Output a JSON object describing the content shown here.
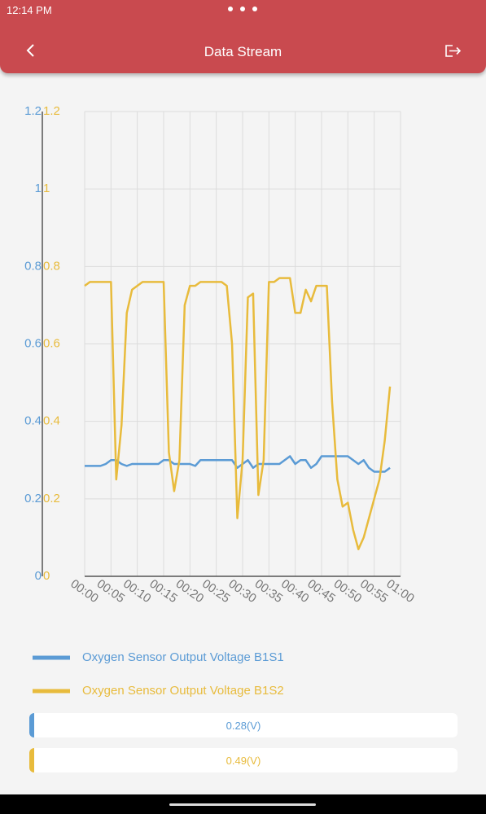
{
  "status_bar": {
    "time": "12:14 PM"
  },
  "header": {
    "title": "Data Stream"
  },
  "chart_data": {
    "type": "line",
    "x": [
      0,
      1,
      2,
      3,
      4,
      5,
      6,
      7,
      8,
      9,
      10,
      11,
      12,
      13,
      14,
      15,
      16,
      17,
      18,
      19,
      20,
      21,
      22,
      23,
      24,
      25,
      26,
      27,
      28,
      29,
      30,
      31,
      32,
      33,
      34,
      35,
      36,
      37,
      38,
      39,
      40,
      41,
      42,
      43,
      44,
      45,
      46,
      47,
      48,
      49,
      50,
      51,
      52,
      53,
      54,
      55,
      56,
      57,
      58
    ],
    "xlim": [
      0,
      60
    ],
    "xticks": [
      {
        "value": 0,
        "label": "00:00"
      },
      {
        "value": 5,
        "label": "00:05"
      },
      {
        "value": 10,
        "label": "00:10"
      },
      {
        "value": 15,
        "label": "00:15"
      },
      {
        "value": 20,
        "label": "00:20"
      },
      {
        "value": 25,
        "label": "00:25"
      },
      {
        "value": 30,
        "label": "00:30"
      },
      {
        "value": 35,
        "label": "00:35"
      },
      {
        "value": 40,
        "label": "00:40"
      },
      {
        "value": 45,
        "label": "00:45"
      },
      {
        "value": 50,
        "label": "00:50"
      },
      {
        "value": 55,
        "label": "00:55"
      },
      {
        "value": 60,
        "label": "01:00"
      }
    ],
    "ylim": [
      0,
      1.2
    ],
    "yticks": [
      0,
      0.2,
      0.4,
      0.6,
      0.8,
      1,
      1.2
    ],
    "y2lim": [
      0,
      1.2
    ],
    "y2ticks": [
      0,
      0.2,
      0.4,
      0.6,
      0.8,
      1,
      1.2
    ],
    "grid": true,
    "series": [
      {
        "name": "Oxygen Sensor Output Voltage B1S1",
        "color": "#5b9bd5",
        "values": [
          0.285,
          0.285,
          0.285,
          0.285,
          0.29,
          0.3,
          0.3,
          0.29,
          0.285,
          0.29,
          0.29,
          0.29,
          0.29,
          0.29,
          0.29,
          0.3,
          0.3,
          0.29,
          0.29,
          0.29,
          0.29,
          0.285,
          0.3,
          0.3,
          0.3,
          0.3,
          0.3,
          0.3,
          0.3,
          0.28,
          0.29,
          0.3,
          0.28,
          0.29,
          0.29,
          0.29,
          0.29,
          0.29,
          0.3,
          0.31,
          0.29,
          0.3,
          0.3,
          0.28,
          0.29,
          0.31,
          0.31,
          0.31,
          0.31,
          0.31,
          0.31,
          0.3,
          0.29,
          0.3,
          0.28,
          0.27,
          0.27,
          0.27,
          0.28
        ]
      },
      {
        "name": "Oxygen Sensor Output Voltage B1S2",
        "color": "#e8bb3c",
        "axis": "y2",
        "values": [
          0.75,
          0.76,
          0.76,
          0.76,
          0.76,
          0.76,
          0.25,
          0.39,
          0.68,
          0.74,
          0.75,
          0.76,
          0.76,
          0.76,
          0.76,
          0.76,
          0.32,
          0.22,
          0.3,
          0.7,
          0.75,
          0.75,
          0.76,
          0.76,
          0.76,
          0.76,
          0.76,
          0.75,
          0.6,
          0.15,
          0.3,
          0.72,
          0.73,
          0.21,
          0.3,
          0.76,
          0.76,
          0.77,
          0.77,
          0.77,
          0.68,
          0.68,
          0.74,
          0.71,
          0.75,
          0.75,
          0.75,
          0.45,
          0.25,
          0.18,
          0.19,
          0.12,
          0.07,
          0.1,
          0.15,
          0.2,
          0.25,
          0.35,
          0.49
        ]
      }
    ]
  },
  "readouts": [
    {
      "text": "0.28(V)"
    },
    {
      "text": "0.49(V)"
    }
  ]
}
